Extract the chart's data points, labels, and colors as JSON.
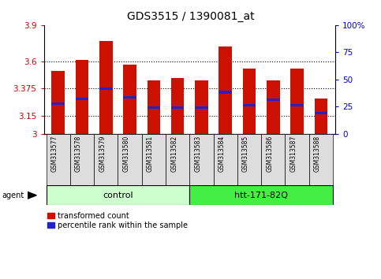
{
  "title": "GDS3515 / 1390081_at",
  "samples": [
    "GSM313577",
    "GSM313578",
    "GSM313579",
    "GSM313580",
    "GSM313581",
    "GSM313582",
    "GSM313583",
    "GSM313584",
    "GSM313585",
    "GSM313586",
    "GSM313587",
    "GSM313588"
  ],
  "bar_values": [
    3.52,
    3.61,
    3.77,
    3.57,
    3.44,
    3.46,
    3.44,
    3.72,
    3.54,
    3.44,
    3.54,
    3.29
  ],
  "percentile_values": [
    3.25,
    3.29,
    3.375,
    3.3,
    3.22,
    3.22,
    3.22,
    3.345,
    3.24,
    3.28,
    3.24,
    3.175
  ],
  "ylim_left": [
    3.0,
    3.9
  ],
  "yticks_left": [
    3.0,
    3.15,
    3.375,
    3.6,
    3.9
  ],
  "ytick_labels_left": [
    "3",
    "3.15",
    "3.375",
    "3.6",
    "3.9"
  ],
  "ylim_right": [
    0,
    100
  ],
  "yticks_right": [
    0,
    25,
    50,
    75,
    100
  ],
  "ytick_labels_right": [
    "0",
    "25",
    "50",
    "75",
    "100%"
  ],
  "bar_color": "#cc1100",
  "percentile_color": "#2222cc",
  "bar_width": 0.55,
  "grid_yticks": [
    3.15,
    3.375,
    3.6
  ],
  "left_tick_color": "#cc0000",
  "right_tick_color": "#0000cc",
  "background_color": "#ffffff",
  "plot_bg": "#ffffff",
  "control_color": "#ccffcc",
  "htt_color": "#44ee44",
  "xtick_bg": "#dddddd",
  "legend_red": "transformed count",
  "legend_blue": "percentile rank within the sample",
  "agent_label": "agent"
}
